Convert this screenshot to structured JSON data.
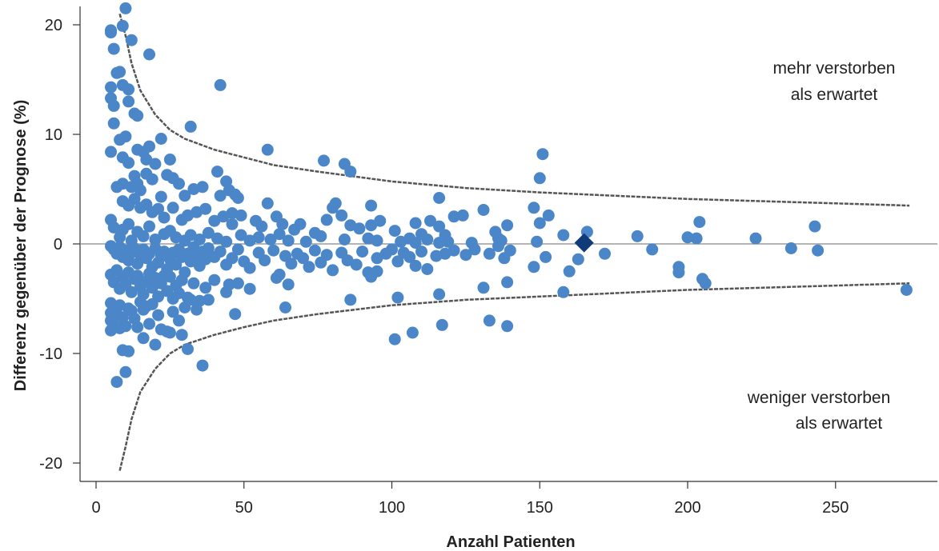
{
  "chart_data": {
    "type": "scatter",
    "title": "",
    "xlabel": "Anzahl Patienten",
    "ylabel": "Differenz gegenüber der Prognose (%)",
    "xlim": [
      -5,
      285
    ],
    "ylim": [
      -21.5,
      21.5
    ],
    "xticks": [
      0,
      50,
      100,
      150,
      200,
      250
    ],
    "yticks": [
      -20,
      -10,
      0,
      10,
      20
    ],
    "grid": false,
    "reference_line_y": 0,
    "colors": {
      "points": "#4a86c8",
      "highlight": "#0f3b78",
      "funnel": "#555555",
      "zero_line": "#888888",
      "axis": "#333333"
    },
    "annotations": [
      {
        "lines": [
          "mehr verstorben",
          "als erwartet"
        ],
        "position": "top-right"
      },
      {
        "lines": [
          "weniger verstorben",
          "als erwartet"
        ],
        "position": "bottom-right"
      }
    ],
    "control_limits": {
      "description": "funnel",
      "points": [
        {
          "x": 8,
          "upper": 21.0,
          "lower": -20.7
        },
        {
          "x": 10,
          "upper": 19.0,
          "lower": -18.5
        },
        {
          "x": 12,
          "upper": 16.5,
          "lower": -16.0
        },
        {
          "x": 15,
          "upper": 14.0,
          "lower": -13.5
        },
        {
          "x": 20,
          "upper": 11.8,
          "lower": -11.4
        },
        {
          "x": 25,
          "upper": 10.4,
          "lower": -10.0
        },
        {
          "x": 30,
          "upper": 9.6,
          "lower": -9.2
        },
        {
          "x": 40,
          "upper": 8.6,
          "lower": -8.3
        },
        {
          "x": 50,
          "upper": 7.9,
          "lower": -7.6
        },
        {
          "x": 60,
          "upper": 7.2,
          "lower": -7.0
        },
        {
          "x": 75,
          "upper": 6.6,
          "lower": -6.4
        },
        {
          "x": 100,
          "upper": 5.7,
          "lower": -5.6
        },
        {
          "x": 125,
          "upper": 5.1,
          "lower": -5.1
        },
        {
          "x": 150,
          "upper": 4.7,
          "lower": -4.8
        },
        {
          "x": 200,
          "upper": 4.1,
          "lower": -4.2
        },
        {
          "x": 250,
          "upper": 3.7,
          "lower": -3.8
        },
        {
          "x": 275,
          "upper": 3.5,
          "lower": -3.6
        }
      ]
    },
    "highlight_point": {
      "x": 165,
      "y": 0.1
    },
    "points": [
      [
        5,
        19.5
      ],
      [
        5,
        19.3
      ],
      [
        6,
        17.8
      ],
      [
        7,
        15.6
      ],
      [
        8,
        15.7
      ],
      [
        10,
        21.5
      ],
      [
        9,
        19.9
      ],
      [
        12,
        18.6
      ],
      [
        18,
        17.3
      ],
      [
        9,
        14.5
      ],
      [
        5,
        14.3
      ],
      [
        5,
        13.3
      ],
      [
        6,
        12.6
      ],
      [
        6,
        11.0
      ],
      [
        11,
        14.1
      ],
      [
        11,
        13.0
      ],
      [
        14,
        11.7
      ],
      [
        13,
        11.9
      ],
      [
        42,
        14.5
      ],
      [
        32,
        10.7
      ],
      [
        8,
        9.5
      ],
      [
        10,
        9.8
      ],
      [
        14,
        8.6
      ],
      [
        18,
        8.9
      ],
      [
        22,
        9.6
      ],
      [
        16,
        8.4
      ],
      [
        5,
        8.4
      ],
      [
        9,
        7.9
      ],
      [
        11,
        7.4
      ],
      [
        20,
        7.3
      ],
      [
        17,
        7.7
      ],
      [
        25,
        7.7
      ],
      [
        58,
        8.6
      ],
      [
        77,
        7.6
      ],
      [
        84,
        7.3
      ],
      [
        86,
        6.6
      ],
      [
        41,
        6.6
      ],
      [
        151,
        8.2
      ],
      [
        7,
        5.2
      ],
      [
        9,
        5.5
      ],
      [
        12,
        5.2
      ],
      [
        13,
        6.2
      ],
      [
        14,
        5.5
      ],
      [
        15,
        4.9
      ],
      [
        17,
        6.4
      ],
      [
        19,
        5.9
      ],
      [
        24,
        6.3
      ],
      [
        26,
        6.0
      ],
      [
        28,
        5.5
      ],
      [
        22,
        4.3
      ],
      [
        30,
        4.4
      ],
      [
        33,
        5.0
      ],
      [
        36,
        5.2
      ],
      [
        44,
        5.7
      ],
      [
        45,
        4.9
      ],
      [
        42,
        4.4
      ],
      [
        47,
        4.5
      ],
      [
        150,
        6.0
      ],
      [
        9,
        3.9
      ],
      [
        11,
        3.5
      ],
      [
        13,
        4.1
      ],
      [
        15,
        3.3
      ],
      [
        17,
        3.6
      ],
      [
        19,
        2.9
      ],
      [
        21,
        3.2
      ],
      [
        23,
        2.4
      ],
      [
        26,
        3.3
      ],
      [
        29,
        2.2
      ],
      [
        31,
        2.6
      ],
      [
        34,
        2.9
      ],
      [
        37,
        3.2
      ],
      [
        40,
        2.1
      ],
      [
        43,
        2.5
      ],
      [
        46,
        2.8
      ],
      [
        49,
        2.6
      ],
      [
        54,
        2.1
      ],
      [
        56,
        1.6
      ],
      [
        58,
        3.7
      ],
      [
        61,
        2.5
      ],
      [
        63,
        1.8
      ],
      [
        67,
        1.3
      ],
      [
        69,
        1.8
      ],
      [
        74,
        1.0
      ],
      [
        76,
        0.7
      ],
      [
        78,
        2.2
      ],
      [
        81,
        3.7
      ],
      [
        83,
        2.6
      ],
      [
        86,
        1.7
      ],
      [
        89,
        1.4
      ],
      [
        93,
        1.7
      ],
      [
        96,
        2.1
      ],
      [
        101,
        1.2
      ],
      [
        108,
        1.9
      ],
      [
        110,
        0.9
      ],
      [
        113,
        2.1
      ],
      [
        116,
        1.6
      ],
      [
        118,
        0.8
      ],
      [
        121,
        2.5
      ],
      [
        124,
        2.6
      ],
      [
        131,
        3.1
      ],
      [
        135,
        1.1
      ],
      [
        136,
        0.5
      ],
      [
        139,
        1.7
      ],
      [
        148,
        3.3
      ],
      [
        150,
        1.9
      ],
      [
        153,
        2.6
      ],
      [
        116,
        4.2
      ],
      [
        93,
        3.5
      ],
      [
        80,
        3.3
      ],
      [
        48,
        4.2
      ],
      [
        46,
        1.8
      ],
      [
        5,
        2.2
      ],
      [
        6,
        1.5
      ],
      [
        8,
        0.6
      ],
      [
        9,
        1.3
      ],
      [
        11,
        1.8
      ],
      [
        12,
        0.3
      ],
      [
        14,
        1.1
      ],
      [
        16,
        0.7
      ],
      [
        18,
        1.6
      ],
      [
        20,
        0.4
      ],
      [
        23,
        0.9
      ],
      [
        25,
        1.2
      ],
      [
        27,
        0.6
      ],
      [
        30,
        0.3
      ],
      [
        32,
        0.8
      ],
      [
        35,
        0.4
      ],
      [
        38,
        1.0
      ],
      [
        41,
        0.5
      ],
      [
        44,
        0.2
      ],
      [
        49,
        0.8
      ],
      [
        52,
        0.3
      ],
      [
        55,
        0.6
      ],
      [
        59,
        0.4
      ],
      [
        62,
        0.9
      ],
      [
        65,
        0.3
      ],
      [
        71,
        0.2
      ],
      [
        84,
        0.4
      ],
      [
        92,
        0.5
      ],
      [
        95,
        0.3
      ],
      [
        103,
        0.2
      ],
      [
        106,
        0.5
      ],
      [
        108,
        0.1
      ],
      [
        112,
        0.4
      ],
      [
        116,
        0.1
      ],
      [
        119,
        0.2
      ],
      [
        127,
        0.1
      ],
      [
        137,
        0.3
      ],
      [
        149,
        0.2
      ],
      [
        158,
        0.8
      ],
      [
        166,
        1.1
      ],
      [
        183,
        0.7
      ],
      [
        200,
        0.6
      ],
      [
        203,
        0.5
      ],
      [
        204,
        2.0
      ],
      [
        223,
        0.5
      ],
      [
        243,
        1.6
      ],
      [
        235,
        -0.4
      ],
      [
        244,
        -0.6
      ],
      [
        5,
        -0.2
      ],
      [
        6,
        -0.5
      ],
      [
        7,
        -0.9
      ],
      [
        8,
        -0.3
      ],
      [
        9,
        -1.2
      ],
      [
        10,
        -0.6
      ],
      [
        11,
        -1.5
      ],
      [
        12,
        -0.8
      ],
      [
        13,
        -0.4
      ],
      [
        14,
        -1.8
      ],
      [
        15,
        -1.0
      ],
      [
        16,
        -0.5
      ],
      [
        17,
        -1.3
      ],
      [
        18,
        -0.9
      ],
      [
        19,
        -2.1
      ],
      [
        20,
        -0.4
      ],
      [
        21,
        -1.7
      ],
      [
        22,
        -1.1
      ],
      [
        23,
        -0.7
      ],
      [
        24,
        -2.3
      ],
      [
        25,
        -1.4
      ],
      [
        26,
        -0.8
      ],
      [
        27,
        -1.9
      ],
      [
        28,
        -0.5
      ],
      [
        29,
        -1.2
      ],
      [
        30,
        -2.6
      ],
      [
        31,
        -0.9
      ],
      [
        32,
        -1.6
      ],
      [
        33,
        -0.3
      ],
      [
        34,
        -1.1
      ],
      [
        35,
        -2.0
      ],
      [
        36,
        -0.7
      ],
      [
        37,
        -1.4
      ],
      [
        38,
        -0.4
      ],
      [
        40,
        -1.2
      ],
      [
        42,
        -0.7
      ],
      [
        44,
        -1.9
      ],
      [
        46,
        -1.3
      ],
      [
        48,
        -0.5
      ],
      [
        50,
        -1.6
      ],
      [
        52,
        -2.2
      ],
      [
        55,
        -0.8
      ],
      [
        57,
        -1.5
      ],
      [
        60,
        -0.6
      ],
      [
        62,
        -2.8
      ],
      [
        64,
        -1.1
      ],
      [
        66,
        -1.8
      ],
      [
        68,
        -0.9
      ],
      [
        70,
        -1.3
      ],
      [
        72,
        -2.1
      ],
      [
        74,
        -0.6
      ],
      [
        76,
        -1.7
      ],
      [
        78,
        -1.0
      ],
      [
        80,
        -2.4
      ],
      [
        83,
        -0.8
      ],
      [
        85,
        -1.5
      ],
      [
        88,
        -1.9
      ],
      [
        90,
        -0.7
      ],
      [
        92,
        -2.6
      ],
      [
        95,
        -1.3
      ],
      [
        98,
        -0.9
      ],
      [
        100,
        -0.5
      ],
      [
        102,
        -1.6
      ],
      [
        104,
        -0.8
      ],
      [
        106,
        -1.2
      ],
      [
        108,
        -2.0
      ],
      [
        110,
        -0.7
      ],
      [
        112,
        -2.3
      ],
      [
        115,
        -1.1
      ],
      [
        118,
        -0.9
      ],
      [
        121,
        -0.6
      ],
      [
        125,
        -1.0
      ],
      [
        128,
        -0.5
      ],
      [
        133,
        -0.9
      ],
      [
        136,
        -0.2
      ],
      [
        138,
        -1.3
      ],
      [
        140,
        -0.6
      ],
      [
        148,
        -2.1
      ],
      [
        152,
        -1.2
      ],
      [
        160,
        -2.5
      ],
      [
        163,
        -1.4
      ],
      [
        172,
        -0.9
      ],
      [
        188,
        -0.5
      ],
      [
        197,
        -2.1
      ],
      [
        197,
        -2.6
      ],
      [
        205,
        -3.2
      ],
      [
        206,
        -3.6
      ],
      [
        274,
        -4.2
      ],
      [
        5,
        -2.8
      ],
      [
        6,
        -3.5
      ],
      [
        7,
        -2.4
      ],
      [
        8,
        -4.1
      ],
      [
        9,
        -3.0
      ],
      [
        10,
        -3.7
      ],
      [
        11,
        -2.6
      ],
      [
        12,
        -4.4
      ],
      [
        13,
        -3.2
      ],
      [
        14,
        -2.9
      ],
      [
        15,
        -3.9
      ],
      [
        16,
        -4.6
      ],
      [
        17,
        -3.4
      ],
      [
        18,
        -2.7
      ],
      [
        19,
        -4.0
      ],
      [
        20,
        -3.1
      ],
      [
        21,
        -4.8
      ],
      [
        22,
        -3.6
      ],
      [
        23,
        -2.9
      ],
      [
        24,
        -4.3
      ],
      [
        25,
        -3.0
      ],
      [
        26,
        -5.0
      ],
      [
        27,
        -3.8
      ],
      [
        28,
        -4.5
      ],
      [
        29,
        -3.3
      ],
      [
        31,
        -4.9
      ],
      [
        33,
        -3.6
      ],
      [
        35,
        -5.2
      ],
      [
        37,
        -4.0
      ],
      [
        40,
        -3.3
      ],
      [
        44,
        -4.4
      ],
      [
        45,
        -3.7
      ],
      [
        48,
        -3.6
      ],
      [
        52,
        -4.1
      ],
      [
        61,
        -3.1
      ],
      [
        65,
        -3.7
      ],
      [
        93,
        -3.0
      ],
      [
        95,
        -2.5
      ],
      [
        102,
        -4.9
      ],
      [
        116,
        -4.6
      ],
      [
        131,
        -4.0
      ],
      [
        139,
        -3.5
      ],
      [
        158,
        -4.4
      ],
      [
        5,
        -5.4
      ],
      [
        5,
        -6.3
      ],
      [
        5,
        -7.0
      ],
      [
        5,
        -7.9
      ],
      [
        6,
        -5.9
      ],
      [
        6,
        -7.4
      ],
      [
        7,
        -6.4
      ],
      [
        8,
        -5.6
      ],
      [
        8,
        -7.7
      ],
      [
        9,
        -6.7
      ],
      [
        10,
        -7.5
      ],
      [
        11,
        -5.9
      ],
      [
        12,
        -6.1
      ],
      [
        13,
        -6.8
      ],
      [
        14,
        -7.6
      ],
      [
        15,
        -5.3
      ],
      [
        16,
        -6.0
      ],
      [
        17,
        -5.7
      ],
      [
        18,
        -7.3
      ],
      [
        19,
        -5.5
      ],
      [
        21,
        -6.5
      ],
      [
        22,
        -7.8
      ],
      [
        24,
        -8.0
      ],
      [
        26,
        -6.2
      ],
      [
        28,
        -7.0
      ],
      [
        29,
        -8.3
      ],
      [
        30,
        -5.8
      ],
      [
        32,
        -5.1
      ],
      [
        34,
        -6.0
      ],
      [
        38,
        -5.1
      ],
      [
        47,
        -6.4
      ],
      [
        64,
        -5.8
      ],
      [
        86,
        -5.1
      ],
      [
        133,
        -7.0
      ],
      [
        139,
        -7.5
      ],
      [
        117,
        -7.4
      ],
      [
        107,
        -8.1
      ],
      [
        101,
        -8.7
      ],
      [
        16,
        -8.6
      ],
      [
        20,
        -9.2
      ],
      [
        25,
        -8.1
      ],
      [
        9,
        -9.7
      ],
      [
        11,
        -9.8
      ],
      [
        31,
        -9.6
      ],
      [
        36,
        -11.1
      ],
      [
        10,
        -11.7
      ],
      [
        7,
        -12.6
      ]
    ]
  }
}
